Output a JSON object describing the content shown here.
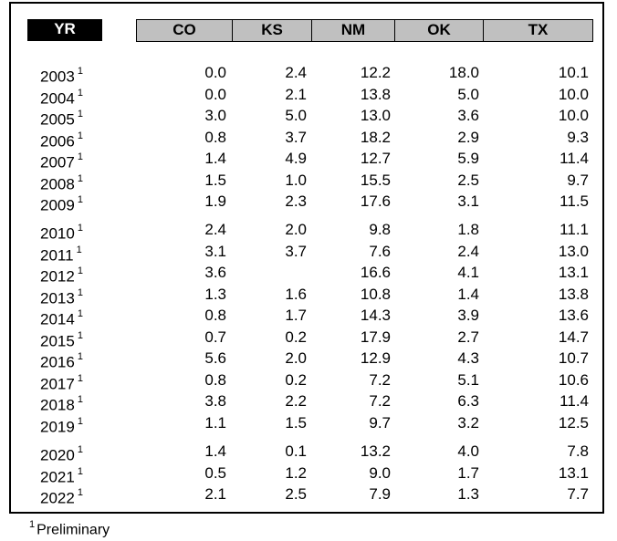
{
  "headers": {
    "yr": "YR",
    "cols": [
      "CO",
      "KS",
      "NM",
      "OK",
      "TX"
    ]
  },
  "footnote_mark": "1",
  "footnote_text": "Preliminary",
  "rows": [
    {
      "year": "2003",
      "co": "0.0",
      "ks": "2.4",
      "nm": "12.2",
      "ok": "18.0",
      "tx": "10.1"
    },
    {
      "year": "2004",
      "co": "0.0",
      "ks": "2.1",
      "nm": "13.8",
      "ok": "5.0",
      "tx": "10.0"
    },
    {
      "year": "2005",
      "co": "3.0",
      "ks": "5.0",
      "nm": "13.0",
      "ok": "3.6",
      "tx": "10.0"
    },
    {
      "year": "2006",
      "co": "0.8",
      "ks": "3.7",
      "nm": "18.2",
      "ok": "2.9",
      "tx": "9.3"
    },
    {
      "year": "2007",
      "co": "1.4",
      "ks": "4.9",
      "nm": "12.7",
      "ok": "5.9",
      "tx": "11.4"
    },
    {
      "year": "2008",
      "co": "1.5",
      "ks": "1.0",
      "nm": "15.5",
      "ok": "2.5",
      "tx": "9.7"
    },
    {
      "year": "2009",
      "co": "1.9",
      "ks": "2.3",
      "nm": "17.6",
      "ok": "3.1",
      "tx": "11.5"
    },
    {
      "year": "2010",
      "co": "2.4",
      "ks": "2.0",
      "nm": "9.8",
      "ok": "1.8",
      "tx": "11.1"
    },
    {
      "year": "2011",
      "co": "3.1",
      "ks": "3.7",
      "nm": "7.6",
      "ok": "2.4",
      "tx": "13.0"
    },
    {
      "year": "2012",
      "co": "3.6",
      "ks": "",
      "nm": "16.6",
      "ok": "4.1",
      "tx": "13.1"
    },
    {
      "year": "2013",
      "co": "1.3",
      "ks": "1.6",
      "nm": "10.8",
      "ok": "1.4",
      "tx": "13.8"
    },
    {
      "year": "2014",
      "co": "0.8",
      "ks": "1.7",
      "nm": "14.3",
      "ok": "3.9",
      "tx": "13.6"
    },
    {
      "year": "2015",
      "co": "0.7",
      "ks": "0.2",
      "nm": "17.9",
      "ok": "2.7",
      "tx": "14.7"
    },
    {
      "year": "2016",
      "co": "5.6",
      "ks": "2.0",
      "nm": "12.9",
      "ok": "4.3",
      "tx": "10.7"
    },
    {
      "year": "2017",
      "co": "0.8",
      "ks": "0.2",
      "nm": "7.2",
      "ok": "5.1",
      "tx": "10.6"
    },
    {
      "year": "2018",
      "co": "3.8",
      "ks": "2.2",
      "nm": "7.2",
      "ok": "6.3",
      "tx": "11.4"
    },
    {
      "year": "2019",
      "co": "1.1",
      "ks": "1.5",
      "nm": "9.7",
      "ok": "3.2",
      "tx": "12.5"
    },
    {
      "year": "2020",
      "co": "1.4",
      "ks": "0.1",
      "nm": "13.2",
      "ok": "4.0",
      "tx": "7.8"
    },
    {
      "year": "2021",
      "co": "0.5",
      "ks": "1.2",
      "nm": "9.0",
      "ok": "1.7",
      "tx": "13.1"
    },
    {
      "year": "2022",
      "co": "2.1",
      "ks": "2.5",
      "nm": "7.9",
      "ok": "1.3",
      "tx": "7.7"
    }
  ]
}
